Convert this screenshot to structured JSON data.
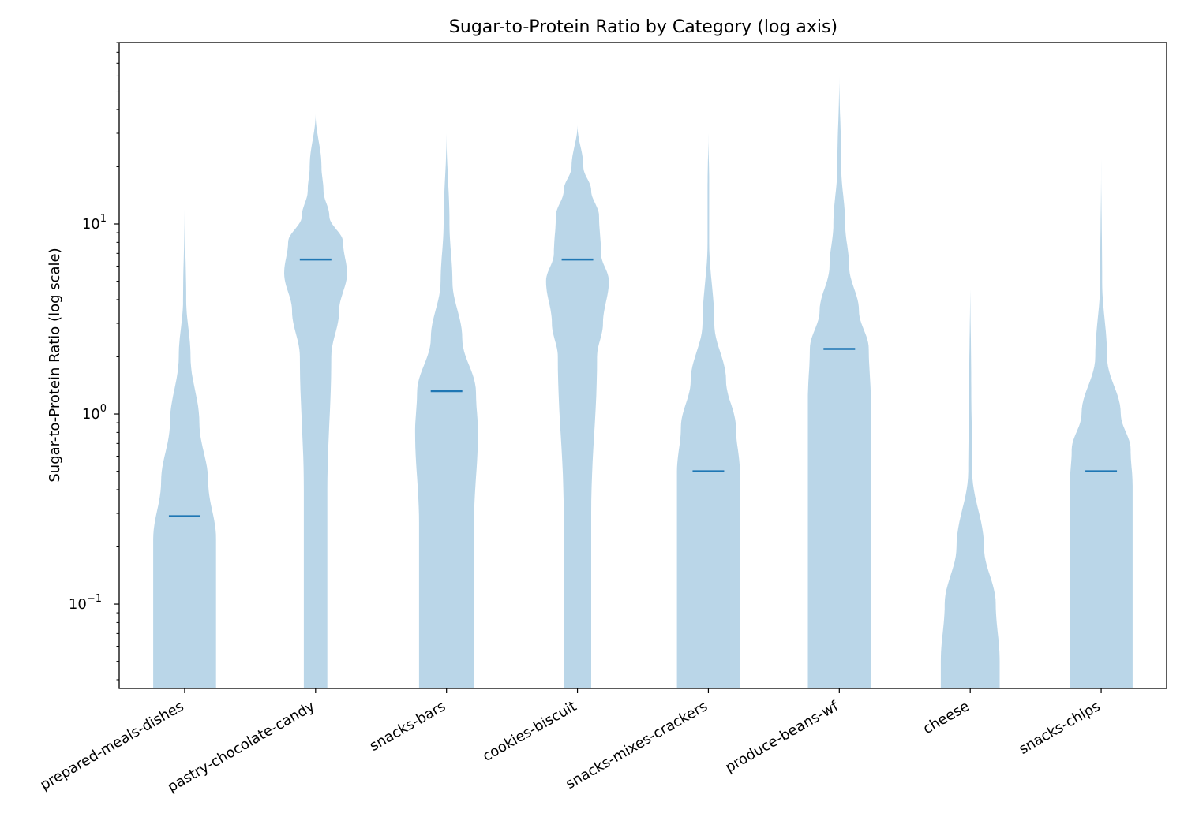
{
  "chart_data": {
    "type": "violin",
    "title": "Sugar-to-Protein Ratio by Category (log axis)",
    "xlabel": "",
    "ylabel": "Sugar-to-Protein Ratio (log scale)",
    "yscale": "log",
    "ylim": [
      0.036,
      90
    ],
    "grid": false,
    "legend": "none",
    "y_ticks": [
      {
        "base": "10",
        "exp": "−1",
        "value": 0.1
      },
      {
        "base": "10",
        "exp": "0",
        "value": 1
      },
      {
        "base": "10",
        "exp": "1",
        "value": 10
      }
    ],
    "colors": {
      "body": "#bad6e8",
      "median": "#1f77b4",
      "axis": "#000000"
    },
    "categories": [
      "prepared-meals-dishes",
      "pastry-chocolate-candy",
      "snacks-bars",
      "cookies-biscuit",
      "snacks-mixes-crackers",
      "produce-beans-wf",
      "cheese",
      "snacks-chips"
    ],
    "medians": [
      0.29,
      6.5,
      1.32,
      6.5,
      0.5,
      2.2,
      null,
      0.5
    ],
    "ranges": [
      [
        0.036,
        12
      ],
      [
        0.036,
        38
      ],
      [
        0.036,
        30
      ],
      [
        0.036,
        33
      ],
      [
        0.036,
        30
      ],
      [
        0.036,
        60
      ],
      [
        0.036,
        5
      ],
      [
        0.036,
        22
      ]
    ],
    "shape_profiles": [
      [
        [
          0.036,
          0.16
        ],
        [
          0.22,
          0.16
        ],
        [
          0.44,
          0.12
        ],
        [
          0.9,
          0.075
        ],
        [
          2,
          0.03
        ],
        [
          4,
          0.008
        ],
        [
          12,
          0.0
        ]
      ],
      [
        [
          0.036,
          0.06
        ],
        [
          0.4,
          0.06
        ],
        [
          2,
          0.08
        ],
        [
          3.5,
          0.12
        ],
        [
          5.5,
          0.16
        ],
        [
          8,
          0.14
        ],
        [
          11,
          0.07
        ],
        [
          15,
          0.04
        ],
        [
          20,
          0.03
        ],
        [
          38,
          0.0
        ]
      ],
      [
        [
          0.036,
          0.14
        ],
        [
          0.27,
          0.14
        ],
        [
          0.8,
          0.16
        ],
        [
          1.3,
          0.15
        ],
        [
          2.5,
          0.08
        ],
        [
          5,
          0.03
        ],
        [
          10,
          0.015
        ],
        [
          30,
          0.0
        ]
      ],
      [
        [
          0.036,
          0.07
        ],
        [
          0.3,
          0.07
        ],
        [
          2,
          0.1
        ],
        [
          3,
          0.13
        ],
        [
          5,
          0.16
        ],
        [
          7,
          0.12
        ],
        [
          11,
          0.11
        ],
        [
          15,
          0.07
        ],
        [
          20,
          0.03
        ],
        [
          33,
          0.0
        ]
      ],
      [
        [
          0.036,
          0.16
        ],
        [
          0.5,
          0.16
        ],
        [
          0.85,
          0.14
        ],
        [
          1.5,
          0.09
        ],
        [
          3,
          0.03
        ],
        [
          8,
          0.004
        ],
        [
          16,
          0.004
        ],
        [
          30,
          0.0
        ]
      ],
      [
        [
          0.036,
          0.16
        ],
        [
          1.2,
          0.16
        ],
        [
          2.2,
          0.15
        ],
        [
          3.5,
          0.1
        ],
        [
          6,
          0.05
        ],
        [
          10,
          0.03
        ],
        [
          20,
          0.01
        ],
        [
          60,
          0.0
        ]
      ],
      [
        [
          0.036,
          0.15
        ],
        [
          0.05,
          0.15
        ],
        [
          0.1,
          0.13
        ],
        [
          0.2,
          0.07
        ],
        [
          0.5,
          0.01
        ],
        [
          1.5,
          0.005
        ],
        [
          5,
          0.0
        ]
      ],
      [
        [
          0.036,
          0.16
        ],
        [
          0.42,
          0.16
        ],
        [
          0.65,
          0.15
        ],
        [
          1.0,
          0.1
        ],
        [
          2.0,
          0.03
        ],
        [
          5,
          0.005
        ],
        [
          22,
          0.0
        ]
      ]
    ]
  }
}
